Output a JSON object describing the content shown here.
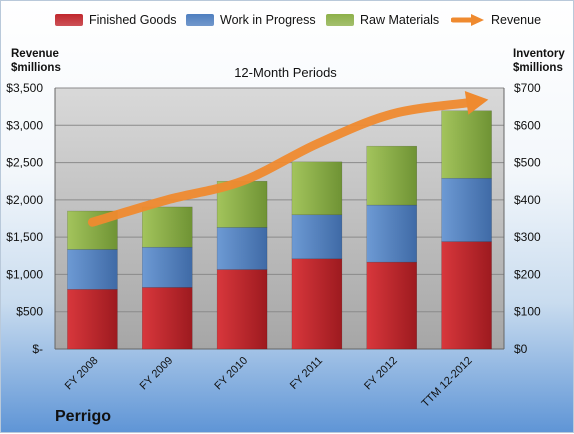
{
  "legend": [
    {
      "label": "Finished Goods",
      "color": "#c0272d",
      "kind": "swatch"
    },
    {
      "label": "Work in Progress",
      "color": "#4f7fbf",
      "kind": "swatch"
    },
    {
      "label": "Raw Materials",
      "color": "#8db04a",
      "kind": "swatch"
    },
    {
      "label": "Revenue",
      "color": "#ef8a2f",
      "kind": "arrow"
    }
  ],
  "left_axis_title": [
    "Revenue",
    "$millions"
  ],
  "right_axis_title": [
    "Inventory",
    "$millions"
  ],
  "company": "Perrigo",
  "colors": {
    "finished_goods": "#c0272d",
    "wip": "#4f7fbf",
    "raw": "#8db04a",
    "revenue": "#ef8a2f",
    "plot_bg": "#bfbfbf"
  },
  "chart_data": {
    "type": "bar",
    "stacked": true,
    "title": "12-Month Periods",
    "categories": [
      "FY 2008",
      "FY 2009",
      "FY 2010",
      "FY 2011",
      "FY 2012",
      "TTM 12-2012"
    ],
    "series": [
      {
        "name": "Finished Goods",
        "axis": "right",
        "values": [
          160,
          165,
          213,
          242,
          233,
          288
        ]
      },
      {
        "name": "Work in Progress",
        "axis": "right",
        "values": [
          107,
          108,
          113,
          118,
          153,
          170
        ]
      },
      {
        "name": "Raw Materials",
        "axis": "right",
        "values": [
          103,
          108,
          124,
          142,
          158,
          181
        ]
      },
      {
        "name": "Revenue",
        "type": "line",
        "axis": "left",
        "values": [
          1700,
          2000,
          2250,
          2750,
          3150,
          3300
        ]
      }
    ],
    "left_axis": {
      "min": 0,
      "max": 3500,
      "ticks": [
        "$-",
        "$500",
        "$1,000",
        "$1,500",
        "$2,000",
        "$2,500",
        "$3,000",
        "$3,500"
      ]
    },
    "right_axis": {
      "min": 0,
      "max": 700,
      "ticks": [
        "$0",
        "$100",
        "$200",
        "$300",
        "$400",
        "$500",
        "$600",
        "$700"
      ]
    },
    "grid": true
  }
}
